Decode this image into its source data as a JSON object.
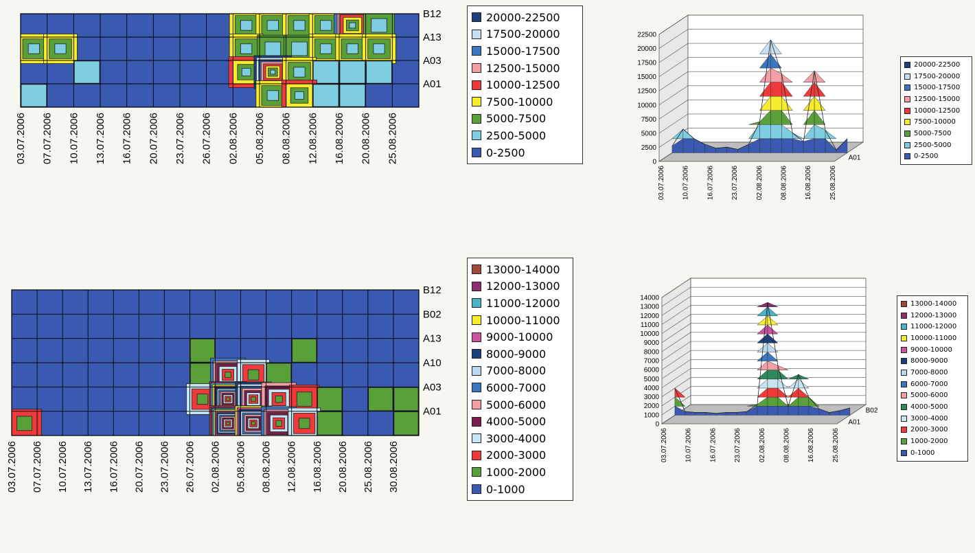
{
  "chart_data": [
    {
      "type": "heatmap",
      "x_ticks": [
        "03.07.2006",
        "07.07.2006",
        "10.07.2006",
        "13.07.2006",
        "16.07.2006",
        "20.07.2006",
        "23.07.2006",
        "26.07.2006",
        "02.08.2006",
        "05.08.2006",
        "08.08.2006",
        "12.08.2006",
        "16.08.2006",
        "20.08.2006",
        "25.08.2006"
      ],
      "y_ticks": [
        "B12",
        "A13",
        "A03",
        "A01"
      ],
      "legend_entries": [
        "20000-22500",
        "17500-20000",
        "15000-17500",
        "12500-15000",
        "10000-12500",
        "7500-10000",
        "5000-7500",
        "2500-5000",
        "0-2500"
      ],
      "colors": [
        "#1d3f7a",
        "#c7dff0",
        "#3a76c2",
        "#f2a0a6",
        "#ee3a3a",
        "#f5ec2e",
        "#5aa03a",
        "#7fcde0",
        "#3a59b0"
      ],
      "values": [
        [
          0,
          0,
          0,
          0,
          0,
          0,
          0,
          0,
          3,
          3,
          3,
          3,
          6,
          2,
          0
        ],
        [
          3,
          3,
          0,
          0,
          0,
          0,
          0,
          0,
          3,
          2,
          2,
          3,
          3,
          3,
          0
        ],
        [
          0,
          0,
          1,
          0,
          0,
          0,
          0,
          0,
          4,
          8,
          3,
          1,
          1,
          1,
          0
        ],
        [
          1,
          0,
          0,
          0,
          0,
          0,
          0,
          0,
          0,
          3,
          4,
          1,
          1,
          0,
          0
        ]
      ],
      "grid": true
    },
    {
      "type": "area",
      "subtype": "3d-surface",
      "x_ticks": [
        "03.07.2006",
        "10.07.2006",
        "16.07.2006",
        "23.07.2006",
        "02.08.2006",
        "08.08.2006",
        "16.08.2006",
        "25.08.2006"
      ],
      "depth_ticks": [
        "A01"
      ],
      "y_ticks": [
        "22500",
        "20000",
        "17500",
        "15000",
        "12500",
        "10000",
        "7500",
        "5000",
        "2500",
        "0"
      ],
      "ylim": [
        0,
        22500
      ],
      "series": [
        {
          "name": "A01",
          "values": [
            1200,
            4200,
            2500,
            1500,
            800,
            1000,
            600,
            1500,
            5500,
            20000,
            14000,
            3500,
            2000,
            14500,
            4000,
            500,
            2500
          ]
        }
      ],
      "legend_entries": [
        "20000-22500",
        "17500-20000",
        "15000-17500",
        "12500-15000",
        "10000-12500",
        "7500-10000",
        "5000-7500",
        "2500-5000",
        "0-2500"
      ],
      "colors": [
        "#1d3f7a",
        "#c7dff0",
        "#3a76c2",
        "#f2a0a6",
        "#ee3a3a",
        "#f5ec2e",
        "#5aa03a",
        "#7fcde0",
        "#3a59b0"
      ]
    },
    {
      "type": "heatmap",
      "x_ticks": [
        "03.07.2006",
        "07.07.2006",
        "10.07.2006",
        "13.07.2006",
        "16.07.2006",
        "20.07.2006",
        "23.07.2006",
        "26.07.2006",
        "02.08.2006",
        "05.08.2006",
        "08.08.2006",
        "12.08.2006",
        "16.08.2006",
        "20.08.2006",
        "25.08.2006",
        "30.08.2006"
      ],
      "y_ticks": [
        "B12",
        "B02",
        "A13",
        "A10",
        "A03",
        "A01"
      ],
      "legend_entries": [
        "13000-14000",
        "12000-13000",
        "11000-12000",
        "10000-11000",
        "9000-10000",
        "8000-9000",
        "7000-8000",
        "6000-7000",
        "5000-6000",
        "4000-5000",
        "3000-4000",
        "2000-3000",
        "1000-2000",
        "0-1000"
      ],
      "colors": [
        "#a0493a",
        "#8a2f6e",
        "#4ab3c8",
        "#f5ec2e",
        "#c9539c",
        "#1d3f7a",
        "#bcd8ee",
        "#3a76c2",
        "#f2a0a6",
        "#7a1e4e",
        "#c6e4f2",
        "#ee3a3a",
        "#5aa03a",
        "#3a59b0"
      ],
      "values": [
        [
          0,
          0,
          0,
          0,
          0,
          0,
          0,
          0,
          0,
          0,
          0,
          0,
          0,
          0,
          0,
          0
        ],
        [
          0,
          0,
          0,
          0,
          0,
          0,
          0,
          0,
          0,
          0,
          0,
          0,
          0,
          0,
          0,
          0
        ],
        [
          0,
          0,
          0,
          0,
          0,
          0,
          0,
          1,
          0,
          0,
          0,
          1,
          0,
          0,
          0,
          0
        ],
        [
          0,
          0,
          0,
          0,
          0,
          0,
          0,
          1,
          6,
          3,
          1,
          0,
          0,
          0,
          0,
          0
        ],
        [
          0,
          0,
          0,
          0,
          0,
          0,
          0,
          3,
          12,
          8,
          5,
          2,
          1,
          0,
          1,
          1
        ],
        [
          2,
          0,
          0,
          0,
          0,
          0,
          0,
          0,
          13,
          10,
          6,
          3,
          1,
          0,
          0,
          1
        ]
      ],
      "grid": true
    },
    {
      "type": "area",
      "subtype": "3d-surface",
      "x_ticks": [
        "03.07.2006",
        "10.07.2006",
        "16.07.2006",
        "23.07.2006",
        "02.08.2006",
        "08.08.2006",
        "16.08.2006",
        "25.08.2006"
      ],
      "depth_ticks": [
        "B02",
        "A01"
      ],
      "y_ticks": [
        "14000",
        "13000",
        "12000",
        "11000",
        "10000",
        "9000",
        "8000",
        "7000",
        "6000",
        "5000",
        "4000",
        "3000",
        "2000",
        "1000",
        "0"
      ],
      "ylim": [
        0,
        14000
      ],
      "series": [
        {
          "name": "A01",
          "values": [
            3000,
            400,
            300,
            300,
            200,
            300,
            300,
            400,
            1200,
            12500,
            5500,
            1000,
            4500,
            2000,
            700,
            300,
            500,
            800
          ]
        }
      ],
      "legend_entries": [
        "13000-14000",
        "12000-13000",
        "11000-12000",
        "10000-11000",
        "9000-10000",
        "8000-9000",
        "7000-8000",
        "6000-7000",
        "5000-6000",
        "4000-5000",
        "3000-4000",
        "2000-3000",
        "1000-2000",
        "0-1000"
      ],
      "colors": [
        "#a0493a",
        "#8a2f6e",
        "#4ab3c8",
        "#f5ec2e",
        "#c9539c",
        "#1d3f7a",
        "#bcd8ee",
        "#3a76c2",
        "#f2a0a6",
        "#2e8a5a",
        "#c6e4f2",
        "#ee3a3a",
        "#5aa03a",
        "#3a59b0"
      ]
    }
  ]
}
